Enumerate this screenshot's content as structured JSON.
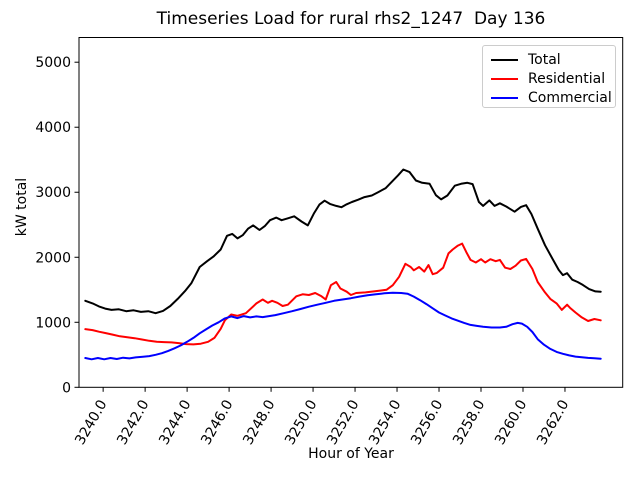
{
  "chart_data": {
    "type": "line",
    "title": "Timeseries Load for rural rhs2_1247  Day 136",
    "xlabel": "Hour of Year",
    "ylabel": "kW total",
    "xlim": [
      3238.85,
      3264.75
    ],
    "ylim": [
      0,
      5380
    ],
    "grid": false,
    "legend_position": "upper right",
    "x_ticks": [
      {
        "value": 3240,
        "label": "3240.0"
      },
      {
        "value": 3242,
        "label": "3242.0"
      },
      {
        "value": 3244,
        "label": "3244.0"
      },
      {
        "value": 3246,
        "label": "3246.0"
      },
      {
        "value": 3248,
        "label": "3248.0"
      },
      {
        "value": 3250,
        "label": "3250.0"
      },
      {
        "value": 3252,
        "label": "3252.0"
      },
      {
        "value": 3254,
        "label": "3254.0"
      },
      {
        "value": 3256,
        "label": "3256.0"
      },
      {
        "value": 3258,
        "label": "3258.0"
      },
      {
        "value": 3260,
        "label": "3260.0"
      },
      {
        "value": 3262,
        "label": "3262.0"
      }
    ],
    "y_ticks": [
      {
        "value": 0,
        "label": "0"
      },
      {
        "value": 1000,
        "label": "1000"
      },
      {
        "value": 2000,
        "label": "2000"
      },
      {
        "value": 3000,
        "label": "3000"
      },
      {
        "value": 4000,
        "label": "4000"
      },
      {
        "value": 5000,
        "label": "5000"
      }
    ],
    "series": [
      {
        "name": "Total",
        "color": "#000000",
        "points": [
          [
            3239.15,
            1330
          ],
          [
            3239.5,
            1290
          ],
          [
            3239.8,
            1245
          ],
          [
            3240.1,
            1210
          ],
          [
            3240.4,
            1190
          ],
          [
            3240.75,
            1200
          ],
          [
            3241.1,
            1170
          ],
          [
            3241.45,
            1185
          ],
          [
            3241.8,
            1160
          ],
          [
            3242.15,
            1170
          ],
          [
            3242.5,
            1140
          ],
          [
            3242.85,
            1175
          ],
          [
            3243.2,
            1250
          ],
          [
            3243.55,
            1360
          ],
          [
            3243.9,
            1480
          ],
          [
            3244.2,
            1600
          ],
          [
            3244.6,
            1850
          ],
          [
            3244.95,
            1940
          ],
          [
            3245.25,
            2010
          ],
          [
            3245.6,
            2120
          ],
          [
            3245.9,
            2330
          ],
          [
            3246.15,
            2360
          ],
          [
            3246.4,
            2290
          ],
          [
            3246.65,
            2340
          ],
          [
            3246.9,
            2440
          ],
          [
            3247.15,
            2490
          ],
          [
            3247.45,
            2420
          ],
          [
            3247.7,
            2480
          ],
          [
            3247.95,
            2570
          ],
          [
            3248.25,
            2610
          ],
          [
            3248.5,
            2570
          ],
          [
            3248.8,
            2600
          ],
          [
            3249.1,
            2630
          ],
          [
            3249.45,
            2550
          ],
          [
            3249.75,
            2490
          ],
          [
            3250.05,
            2680
          ],
          [
            3250.3,
            2810
          ],
          [
            3250.55,
            2870
          ],
          [
            3250.8,
            2820
          ],
          [
            3251.1,
            2790
          ],
          [
            3251.35,
            2770
          ],
          [
            3251.6,
            2815
          ],
          [
            3251.85,
            2850
          ],
          [
            3252.15,
            2885
          ],
          [
            3252.45,
            2925
          ],
          [
            3252.8,
            2950
          ],
          [
            3253.1,
            3000
          ],
          [
            3253.45,
            3060
          ],
          [
            3253.75,
            3160
          ],
          [
            3254.05,
            3260
          ],
          [
            3254.3,
            3350
          ],
          [
            3254.6,
            3310
          ],
          [
            3254.9,
            3180
          ],
          [
            3255.2,
            3145
          ],
          [
            3255.55,
            3130
          ],
          [
            3255.85,
            2955
          ],
          [
            3256.1,
            2890
          ],
          [
            3256.4,
            2950
          ],
          [
            3256.75,
            3100
          ],
          [
            3257.05,
            3130
          ],
          [
            3257.35,
            3145
          ],
          [
            3257.6,
            3125
          ],
          [
            3257.9,
            2850
          ],
          [
            3258.1,
            2790
          ],
          [
            3258.4,
            2875
          ],
          [
            3258.65,
            2790
          ],
          [
            3258.9,
            2830
          ],
          [
            3259.2,
            2780
          ],
          [
            3259.6,
            2700
          ],
          [
            3259.9,
            2775
          ],
          [
            3260.15,
            2800
          ],
          [
            3260.4,
            2665
          ],
          [
            3260.7,
            2440
          ],
          [
            3261.05,
            2185
          ],
          [
            3261.4,
            1980
          ],
          [
            3261.7,
            1805
          ],
          [
            3261.9,
            1725
          ],
          [
            3262.1,
            1755
          ],
          [
            3262.35,
            1655
          ],
          [
            3262.6,
            1620
          ],
          [
            3262.85,
            1575
          ],
          [
            3263.15,
            1510
          ],
          [
            3263.45,
            1475
          ],
          [
            3263.7,
            1470
          ]
        ]
      },
      {
        "name": "Residential",
        "color": "#ff0000",
        "points": [
          [
            3239.15,
            895
          ],
          [
            3239.5,
            880
          ],
          [
            3239.8,
            855
          ],
          [
            3240.1,
            835
          ],
          [
            3240.45,
            810
          ],
          [
            3240.8,
            785
          ],
          [
            3241.15,
            770
          ],
          [
            3241.5,
            755
          ],
          [
            3241.85,
            735
          ],
          [
            3242.2,
            715
          ],
          [
            3242.55,
            700
          ],
          [
            3242.9,
            695
          ],
          [
            3243.25,
            690
          ],
          [
            3243.6,
            680
          ],
          [
            3243.95,
            665
          ],
          [
            3244.3,
            660
          ],
          [
            3244.65,
            670
          ],
          [
            3245.0,
            700
          ],
          [
            3245.3,
            760
          ],
          [
            3245.6,
            900
          ],
          [
            3245.8,
            1030
          ],
          [
            3246.1,
            1120
          ],
          [
            3246.4,
            1100
          ],
          [
            3246.8,
            1140
          ],
          [
            3247.3,
            1290
          ],
          [
            3247.6,
            1350
          ],
          [
            3247.85,
            1300
          ],
          [
            3248.05,
            1330
          ],
          [
            3248.3,
            1300
          ],
          [
            3248.55,
            1250
          ],
          [
            3248.8,
            1270
          ],
          [
            3249.2,
            1400
          ],
          [
            3249.5,
            1430
          ],
          [
            3249.8,
            1420
          ],
          [
            3250.1,
            1450
          ],
          [
            3250.4,
            1400
          ],
          [
            3250.6,
            1350
          ],
          [
            3250.85,
            1570
          ],
          [
            3251.1,
            1620
          ],
          [
            3251.3,
            1520
          ],
          [
            3251.6,
            1470
          ],
          [
            3251.8,
            1420
          ],
          [
            3252.05,
            1450
          ],
          [
            3252.5,
            1460
          ],
          [
            3253.0,
            1480
          ],
          [
            3253.5,
            1500
          ],
          [
            3253.8,
            1570
          ],
          [
            3254.1,
            1700
          ],
          [
            3254.4,
            1900
          ],
          [
            3254.65,
            1850
          ],
          [
            3254.8,
            1800
          ],
          [
            3255.05,
            1850
          ],
          [
            3255.3,
            1780
          ],
          [
            3255.5,
            1880
          ],
          [
            3255.7,
            1740
          ],
          [
            3255.9,
            1760
          ],
          [
            3256.2,
            1840
          ],
          [
            3256.45,
            2060
          ],
          [
            3256.65,
            2120
          ],
          [
            3256.9,
            2180
          ],
          [
            3257.1,
            2210
          ],
          [
            3257.3,
            2080
          ],
          [
            3257.5,
            1960
          ],
          [
            3257.75,
            1920
          ],
          [
            3258.0,
            1970
          ],
          [
            3258.2,
            1920
          ],
          [
            3258.45,
            1970
          ],
          [
            3258.7,
            1940
          ],
          [
            3258.9,
            1960
          ],
          [
            3259.15,
            1840
          ],
          [
            3259.4,
            1820
          ],
          [
            3259.65,
            1870
          ],
          [
            3259.9,
            1950
          ],
          [
            3260.15,
            1975
          ],
          [
            3260.45,
            1820
          ],
          [
            3260.7,
            1620
          ],
          [
            3261.05,
            1460
          ],
          [
            3261.3,
            1360
          ],
          [
            3261.6,
            1290
          ],
          [
            3261.85,
            1190
          ],
          [
            3262.1,
            1270
          ],
          [
            3262.25,
            1220
          ],
          [
            3262.5,
            1150
          ],
          [
            3262.8,
            1075
          ],
          [
            3263.1,
            1020
          ],
          [
            3263.4,
            1050
          ],
          [
            3263.7,
            1030
          ]
        ]
      },
      {
        "name": "Commercial",
        "color": "#0000ff",
        "points": [
          [
            3239.15,
            450
          ],
          [
            3239.45,
            430
          ],
          [
            3239.75,
            450
          ],
          [
            3240.05,
            430
          ],
          [
            3240.35,
            450
          ],
          [
            3240.65,
            435
          ],
          [
            3240.95,
            455
          ],
          [
            3241.25,
            445
          ],
          [
            3241.55,
            460
          ],
          [
            3241.9,
            470
          ],
          [
            3242.2,
            480
          ],
          [
            3242.5,
            500
          ],
          [
            3242.8,
            525
          ],
          [
            3243.1,
            560
          ],
          [
            3243.4,
            600
          ],
          [
            3243.7,
            645
          ],
          [
            3244.0,
            700
          ],
          [
            3244.3,
            760
          ],
          [
            3244.6,
            830
          ],
          [
            3244.9,
            890
          ],
          [
            3245.2,
            950
          ],
          [
            3245.5,
            1000
          ],
          [
            3245.8,
            1060
          ],
          [
            3246.1,
            1090
          ],
          [
            3246.4,
            1065
          ],
          [
            3246.7,
            1095
          ],
          [
            3247.0,
            1075
          ],
          [
            3247.3,
            1090
          ],
          [
            3247.6,
            1080
          ],
          [
            3247.9,
            1095
          ],
          [
            3248.2,
            1110
          ],
          [
            3248.6,
            1140
          ],
          [
            3249.0,
            1170
          ],
          [
            3249.4,
            1205
          ],
          [
            3249.8,
            1240
          ],
          [
            3250.2,
            1270
          ],
          [
            3250.6,
            1300
          ],
          [
            3251.0,
            1330
          ],
          [
            3251.4,
            1350
          ],
          [
            3251.8,
            1370
          ],
          [
            3252.2,
            1395
          ],
          [
            3252.6,
            1415
          ],
          [
            3253.0,
            1430
          ],
          [
            3253.4,
            1445
          ],
          [
            3253.8,
            1455
          ],
          [
            3254.2,
            1450
          ],
          [
            3254.5,
            1440
          ],
          [
            3254.8,
            1395
          ],
          [
            3255.1,
            1340
          ],
          [
            3255.4,
            1280
          ],
          [
            3255.7,
            1215
          ],
          [
            3256.0,
            1150
          ],
          [
            3256.3,
            1105
          ],
          [
            3256.6,
            1060
          ],
          [
            3256.9,
            1025
          ],
          [
            3257.2,
            990
          ],
          [
            3257.5,
            960
          ],
          [
            3257.8,
            945
          ],
          [
            3258.1,
            930
          ],
          [
            3258.5,
            920
          ],
          [
            3258.9,
            920
          ],
          [
            3259.2,
            930
          ],
          [
            3259.5,
            970
          ],
          [
            3259.75,
            990
          ],
          [
            3259.95,
            980
          ],
          [
            3260.2,
            930
          ],
          [
            3260.45,
            850
          ],
          [
            3260.7,
            740
          ],
          [
            3261.0,
            655
          ],
          [
            3261.3,
            590
          ],
          [
            3261.6,
            545
          ],
          [
            3261.9,
            515
          ],
          [
            3262.2,
            490
          ],
          [
            3262.5,
            472
          ],
          [
            3262.8,
            462
          ],
          [
            3263.1,
            452
          ],
          [
            3263.4,
            447
          ],
          [
            3263.7,
            440
          ]
        ]
      }
    ]
  }
}
